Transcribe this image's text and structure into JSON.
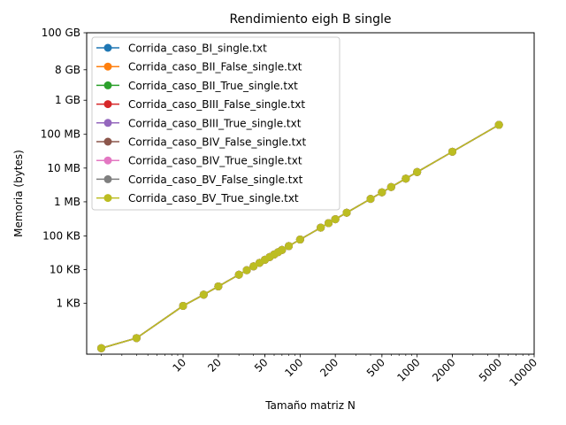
{
  "chart_data": {
    "type": "line",
    "title": "Rendimiento eigh B single",
    "xlabel": "Tamaño matriz N",
    "ylabel": "Memoria (bytes)",
    "xscale": "log",
    "yscale": "log",
    "xlim": [
      1.5,
      10000
    ],
    "ylim": [
      32,
      107374182400
    ],
    "grid": false,
    "legend_position": "upper-left",
    "x_ticks": [
      {
        "value": 10,
        "label": "10"
      },
      {
        "value": 20,
        "label": "20"
      },
      {
        "value": 50,
        "label": "50"
      },
      {
        "value": 100,
        "label": "100"
      },
      {
        "value": 200,
        "label": "200"
      },
      {
        "value": 500,
        "label": "500"
      },
      {
        "value": 1000,
        "label": "1000"
      },
      {
        "value": 2000,
        "label": "2000"
      },
      {
        "value": 5000,
        "label": "5000"
      },
      {
        "value": 10000,
        "label": "10000"
      }
    ],
    "y_ticks": [
      {
        "value": 1024,
        "label": "1 KB"
      },
      {
        "value": 10240,
        "label": "10 KB"
      },
      {
        "value": 102400,
        "label": "100 KB"
      },
      {
        "value": 1048576,
        "label": "1 MB"
      },
      {
        "value": 10485760,
        "label": "10 MB"
      },
      {
        "value": 104857600,
        "label": "100 MB"
      },
      {
        "value": 1073741824,
        "label": "1 GB"
      },
      {
        "value": 8589934592,
        "label": "8 GB"
      },
      {
        "value": 107374182400,
        "label": "100 GB"
      }
    ],
    "x": [
      2,
      4,
      10,
      15,
      20,
      30,
      35,
      40,
      45,
      50,
      55,
      60,
      65,
      70,
      80,
      100,
      150,
      175,
      200,
      250,
      400,
      500,
      600,
      800,
      1000,
      2000,
      5000
    ],
    "y": [
      48,
      96,
      864,
      1856,
      3264,
      7248,
      9856,
      12864,
      16272,
      20064,
      24256,
      28848,
      33840,
      39232,
      51216,
      80000,
      180000,
      245000,
      320000,
      500000,
      1280000,
      2000000,
      2880000,
      5120000,
      8000000,
      32000000,
      200000000
    ],
    "series": [
      {
        "name": "Corrida_caso_BI_single.txt",
        "color": "#1f77b4"
      },
      {
        "name": "Corrida_caso_BII_False_single.txt",
        "color": "#ff7f0e"
      },
      {
        "name": "Corrida_caso_BII_True_single.txt",
        "color": "#2ca02c"
      },
      {
        "name": "Corrida_caso_BIII_False_single.txt",
        "color": "#d62728"
      },
      {
        "name": "Corrida_caso_BIII_True_single.txt",
        "color": "#9467bd"
      },
      {
        "name": "Corrida_caso_BIV_False_single.txt",
        "color": "#8c564b"
      },
      {
        "name": "Corrida_caso_BIV_True_single.txt",
        "color": "#e377c2"
      },
      {
        "name": "Corrida_caso_BV_False_single.txt",
        "color": "#7f7f7f"
      },
      {
        "name": "Corrida_caso_BV_True_single.txt",
        "color": "#bcbd22"
      }
    ]
  }
}
